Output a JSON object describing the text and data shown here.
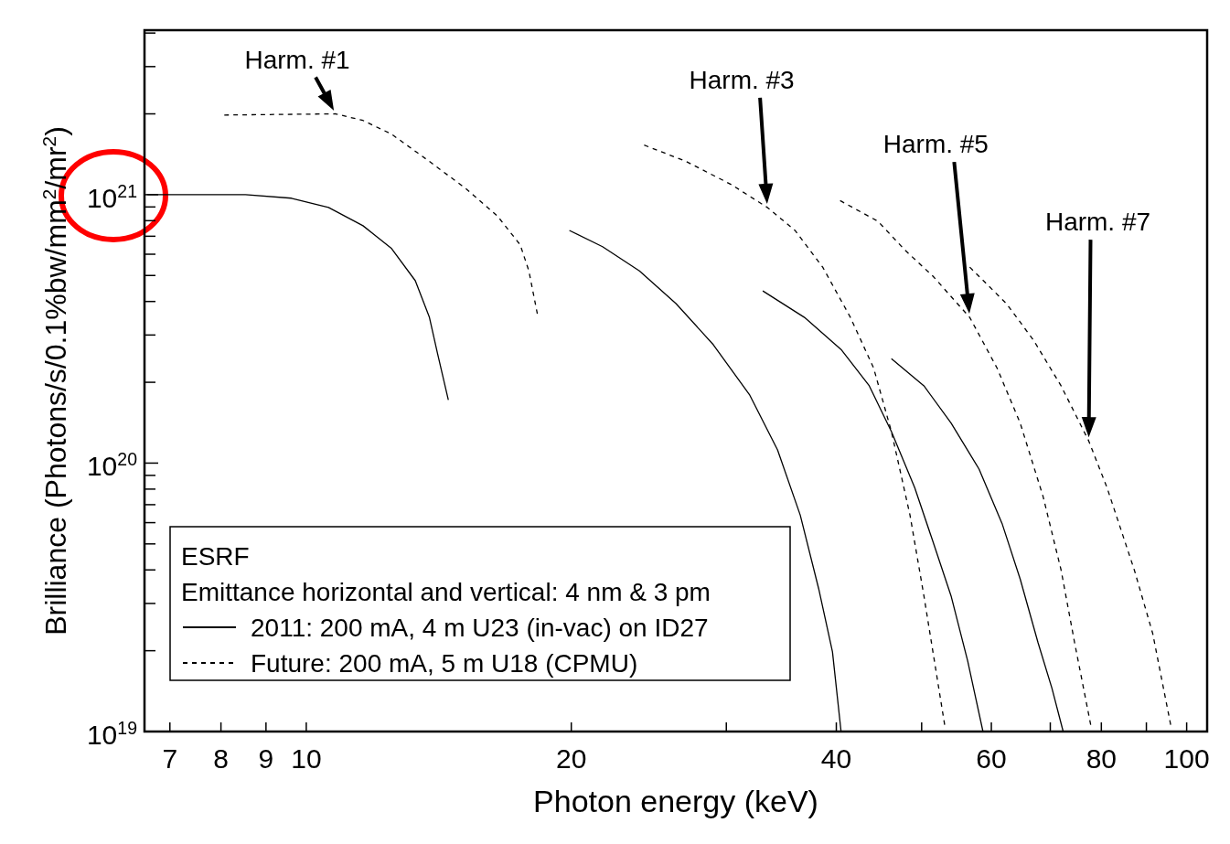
{
  "chart_data": {
    "type": "line",
    "xlabel": "Photon energy (keV)",
    "ylabel": "Brilliance (Photons/s/0.1%bw/mm$^{2}$/mr$^{2}$)",
    "log": "xy",
    "legend": "bottom left",
    "legend_title": "ESRF",
    "xlim": [
      6.55,
      105.5
    ],
    "ylim": [
      1e+19,
      4.1e+21
    ],
    "xticks": [
      7,
      8,
      9,
      10,
      20,
      {
        "value": 30,
        "label": null
      },
      40,
      {
        "value": 50,
        "label": null
      },
      60,
      {
        "value": 70,
        "label": null
      },
      80,
      {
        "value": 90,
        "label": null
      },
      100
    ],
    "yticks": [
      {
        "value": 1e+19,
        "label": "10$^{19}$"
      },
      {
        "value": 2e+19,
        "label": null
      },
      {
        "value": 3e+19,
        "label": null
      },
      {
        "value": 4e+19,
        "label": null
      },
      {
        "value": 5e+19,
        "label": null
      },
      {
        "value": 6e+19,
        "label": null
      },
      {
        "value": 7e+19,
        "label": null
      },
      {
        "value": 8e+19,
        "label": null
      },
      {
        "value": 9e+19,
        "label": null
      },
      {
        "value": 1e+20,
        "label": "10$^{20}$"
      },
      {
        "value": 2e+20,
        "label": null
      },
      {
        "value": 3e+20,
        "label": null
      },
      {
        "value": 4e+20,
        "label": null
      },
      {
        "value": 5e+20,
        "label": null
      },
      {
        "value": 6e+20,
        "label": null
      },
      {
        "value": 7e+20,
        "label": null
      },
      {
        "value": 8e+20,
        "label": null
      },
      {
        "value": 9e+20,
        "label": null
      },
      {
        "value": 1e+21,
        "label": "10$^{21}$"
      },
      {
        "value": 2e+21,
        "label": null
      },
      {
        "value": 3e+21,
        "label": null
      },
      {
        "value": 4e+21,
        "label": null
      }
    ],
    "annotations": [
      "Emittance horizontal and vertical: 4 nm & 3 pm",
      {
        "text": "Harm. #1",
        "x": 10.8,
        "y": 2e+21
      },
      "Harm. #3",
      "Harm. #5",
      "Harm. #7"
    ],
    "series": [
      {
        "name": "2011: 200 mA, 4 m U23 (in-vac) on ID27",
        "color": "#000000",
        "line_style": "solid",
        "x": [
          6.6,
          8.53,
          9.62,
          10.6,
          11.6,
          12.5,
          13.3,
          13.8,
          14.1,
          14.5
        ],
        "values": [
          1e+21,
          1e+21,
          9.7e+20,
          8.96e+20,
          7.66e+20,
          6.3e+20,
          4.78e+20,
          3.49e+20,
          2.55e+20,
          1.72e+20
        ]
      },
      {
        "name": "Future: 200 mA, 5 m U18 (CPMU)",
        "color": "#000000",
        "line_style": "dashed",
        "x": [
          8.07,
          10.8,
          11.6,
          12.5,
          13.8,
          15.2,
          16.5,
          17.5,
          17.9,
          18.3
        ],
        "values": [
          1.98e+21,
          2e+21,
          1.89e+21,
          1.68e+21,
          1.33e+21,
          1.05e+21,
          8.3e+20,
          6.5e+20,
          5.2e+20,
          3.6e+20
        ]
      },
      {
        "color": "#000000",
        "line_style": "solid",
        "x": [
          19.9,
          21.7,
          23.9,
          26.3,
          29.0,
          31.9,
          34.3,
          36.4,
          38.2,
          39.6,
          40.5
        ],
        "values": [
          7.36e+20,
          6.4e+20,
          5.2e+20,
          3.93e+20,
          2.76e+20,
          1.79e+20,
          1.12e+20,
          6.4e+19,
          3.4e+19,
          1.98e+19,
          1e+19
        ]
      },
      {
        "color": "#000000",
        "line_style": "dashed",
        "x": [
          24.2,
          27.0,
          30.4,
          33.4,
          35.9,
          38.6,
          41.5,
          44.1,
          46.2,
          48.5,
          50.3,
          51.7,
          53.1
        ],
        "values": [
          1.53e+21,
          1.33e+21,
          1.09e+21,
          8.96e+20,
          7.36e+20,
          5.37e+20,
          3.49e+20,
          2.26e+20,
          1.31e+20,
          6.4e+19,
          3.2e+19,
          1.83e+19,
          1.06e+19
        ]
      },
      {
        "color": "#000000",
        "line_style": "solid",
        "x": [
          33.0,
          36.8,
          40.5,
          43.6,
          46.2,
          49.1,
          51.5,
          54.0,
          56.4,
          58.7
        ],
        "values": [
          4.38e+20,
          3.49e+20,
          2.65e+20,
          1.94e+20,
          1.31e+20,
          8.1e+19,
          5.1e+19,
          3.2e+19,
          1.83e+19,
          1e+19
        ]
      },
      {
        "color": "#000000",
        "line_style": "dashed",
        "x": [
          40.4,
          44.6,
          47.9,
          51.5,
          56.7,
          60.9,
          64.7,
          68.7,
          72.0,
          74.6,
          77.8
        ],
        "values": [
          9.5e+20,
          7.96e+20,
          6.2e+20,
          4.97e+20,
          3.49e+20,
          2.26e+20,
          1.41e+20,
          7.5e+19,
          4e+19,
          2.14e+19,
          1.06e+19
        ]
      },
      {
        "color": "#000000",
        "line_style": "solid",
        "x": [
          46.2,
          50.3,
          54.0,
          58.1,
          61.7,
          64.7,
          67.8,
          70.3,
          72.4
        ],
        "values": [
          2.45e+20,
          1.94e+20,
          1.41e+20,
          9.5e+19,
          5.96e+19,
          3.7e+19,
          2.14e+19,
          1.45e+19,
          1e+19
        ]
      },
      {
        "color": "#000000",
        "line_style": "dashed",
        "x": [
          56.7,
          62.4,
          67.0,
          72.0,
          77.4,
          81.2,
          87.2,
          91.5,
          95.9
        ],
        "values": [
          5.37e+20,
          3.93e+20,
          2.87e+20,
          1.94e+20,
          1.21e+20,
          8.1e+19,
          4e+19,
          2.32e+19,
          1.06e+19
        ]
      }
    ]
  }
}
